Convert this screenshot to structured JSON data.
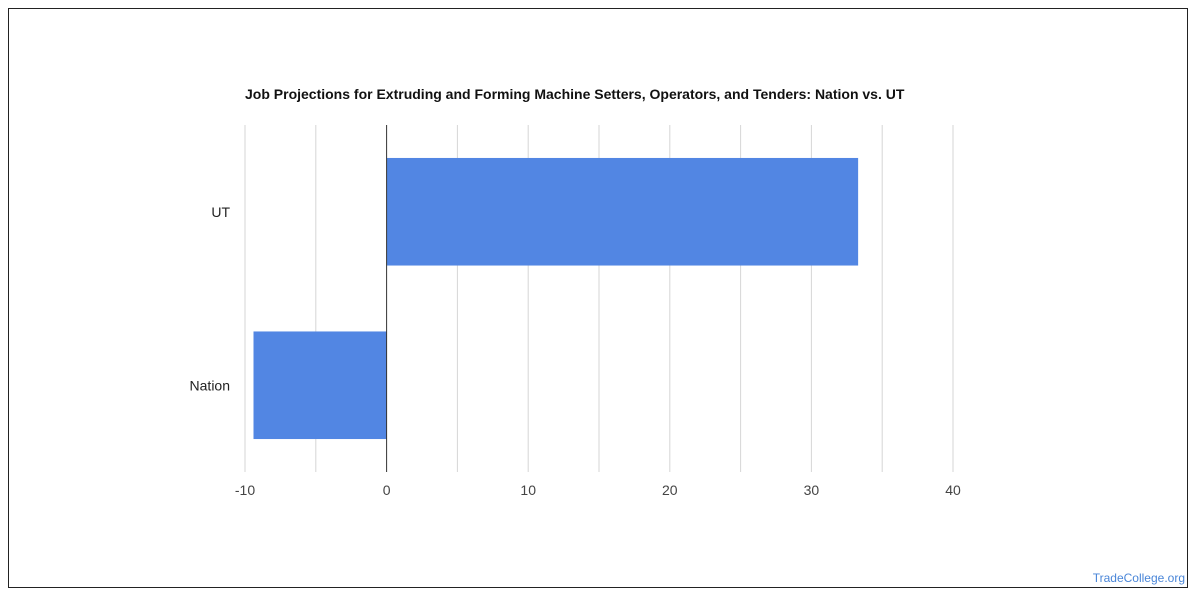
{
  "chart_data": {
    "type": "bar",
    "orientation": "horizontal",
    "title": "Job Projections for Extruding and Forming Machine Setters, Operators, and Tenders: Nation vs. UT",
    "categories": [
      "UT",
      "Nation"
    ],
    "values": [
      33.3,
      -9.4
    ],
    "xlim": [
      -10,
      40
    ],
    "xticks": [
      "-10",
      "0",
      "10",
      "20",
      "30",
      "40"
    ],
    "xlabel": "",
    "ylabel": "",
    "grid": true,
    "bar_color": "#5286e3"
  },
  "watermark": "TradeCollege.org"
}
